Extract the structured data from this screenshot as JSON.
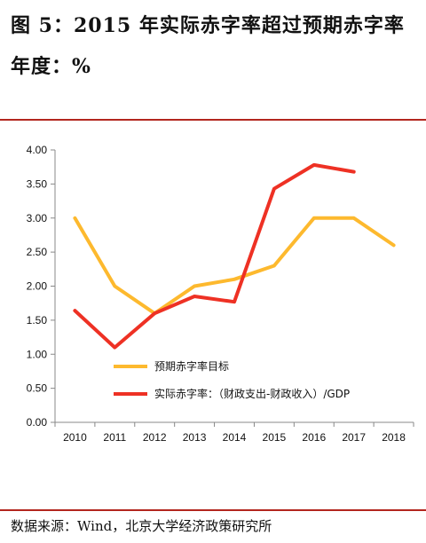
{
  "page": {
    "title": "图 5：2015 年实际赤字率超过预期赤字率年度：%",
    "source": "数据来源：Wind，北京大学经济政策研究所"
  },
  "chart_data": {
    "type": "line",
    "categories": [
      "2010",
      "2011",
      "2012",
      "2013",
      "2014",
      "2015",
      "2016",
      "2017",
      "2018"
    ],
    "series": [
      {
        "name": "预期赤字率目标",
        "color": "#fdb92e",
        "values": [
          3.0,
          2.0,
          1.6,
          2.0,
          2.1,
          2.3,
          3.0,
          3.0,
          2.6
        ]
      },
      {
        "name": "实际赤字率：（财政支出-财政收入）/GDP",
        "color": "#ee3124",
        "values": [
          1.64,
          1.1,
          1.6,
          1.85,
          1.77,
          3.43,
          3.78,
          3.68,
          null
        ]
      }
    ],
    "yticks": [
      "0.00",
      "0.50",
      "1.00",
      "1.50",
      "2.00",
      "2.50",
      "3.00",
      "3.50",
      "4.00"
    ],
    "ylim": [
      0,
      4
    ],
    "grid": false,
    "legend": "lower-center"
  }
}
